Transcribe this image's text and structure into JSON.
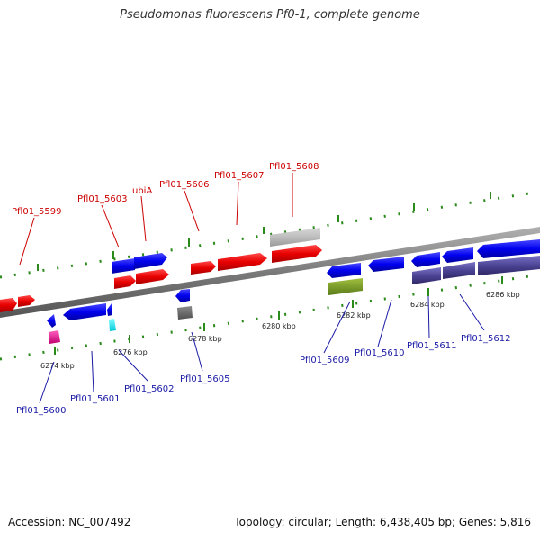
{
  "title": "Pseudomonas fluorescens Pf0-1, complete genome",
  "footer": {
    "accession": "Accession: NC_007492",
    "summary": "Topology: circular; Length: 6,438,405 bp; Genes: 5,816"
  },
  "colors": {
    "forward_label": "#cc0000",
    "reverse_label": "#1a1aa6",
    "backbone": "#8a8a8a",
    "tick": "#2a8a1a"
  },
  "genes_forward": [
    {
      "id": "a",
      "label": ""
    },
    {
      "id": "b",
      "label": "Pfl01_5599"
    },
    {
      "id": "c",
      "label": "Pfl01_5603"
    },
    {
      "id": "d",
      "label": "ubiA"
    },
    {
      "id": "e",
      "label": "Pfl01_5606"
    },
    {
      "id": "f",
      "label": "Pfl01_5607"
    },
    {
      "id": "g",
      "label": "Pfl01_5608"
    }
  ],
  "genes_reverse": [
    {
      "id": "h",
      "label": "Pfl01_5600"
    },
    {
      "id": "i",
      "label": "Pfl01_5601"
    },
    {
      "id": "j",
      "label": "Pfl01_5602"
    },
    {
      "id": "k",
      "label": "Pfl01_5605"
    },
    {
      "id": "l",
      "label": "Pfl01_5609"
    },
    {
      "id": "m",
      "label": "Pfl01_5610"
    },
    {
      "id": "n",
      "label": "Pfl01_5611"
    },
    {
      "id": "o",
      "label": "Pfl01_5612"
    }
  ],
  "coordinate_labels": [
    "6274 kbp",
    "6276 kbp",
    "6278 kbp",
    "6280 kbp",
    "6282 kbp",
    "6284 kbp",
    "6286 kbp"
  ]
}
